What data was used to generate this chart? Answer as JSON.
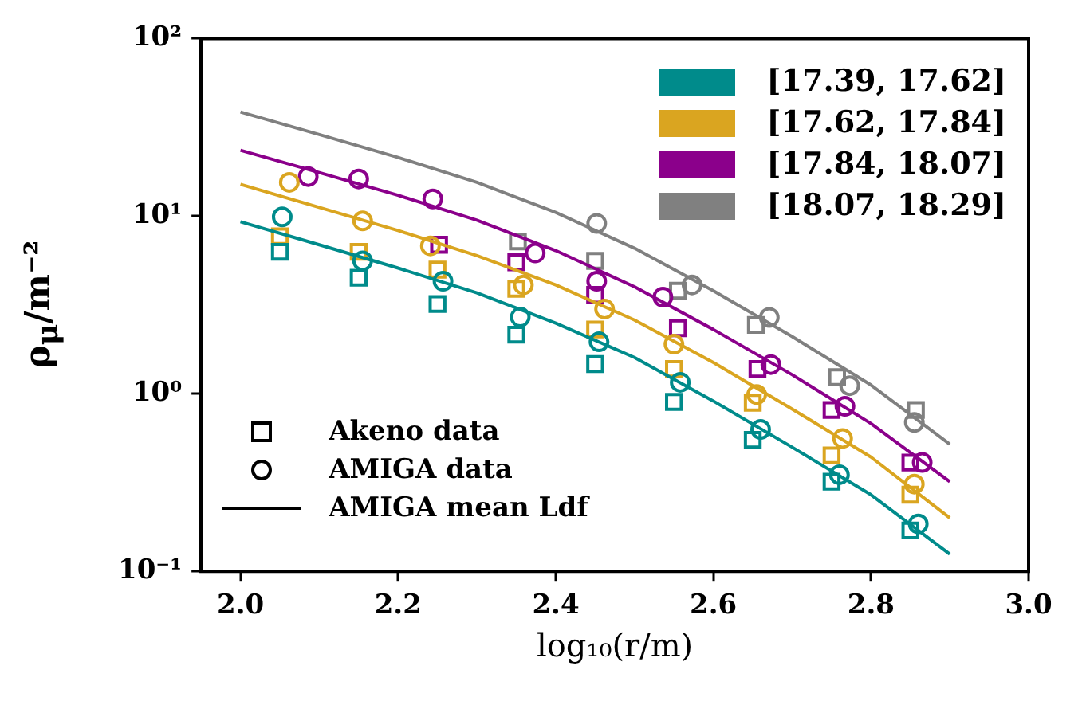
{
  "chart_data": {
    "type": "line",
    "xlabel": "log₁₀(r/m)",
    "ylabel": "ρ$_{μ}$/m⁻²",
    "log": "y",
    "xlim": [
      1.95,
      3.0
    ],
    "xticks": [
      {
        "value": 2.0,
        "label": "2.0"
      },
      {
        "value": 2.2,
        "label": "2.2"
      },
      {
        "value": 2.4,
        "label": "2.4"
      },
      {
        "value": 2.6,
        "label": "2.6"
      },
      {
        "value": 2.8,
        "label": "2.8"
      },
      {
        "value": 3.0,
        "label": "3.0"
      }
    ],
    "ylim": [
      0.1,
      100
    ],
    "yticks": [
      {
        "value": 0.1,
        "label": "10⁻¹"
      },
      {
        "value": 1,
        "label": "10⁰"
      },
      {
        "value": 10,
        "label": "10¹"
      },
      {
        "value": 100,
        "label": "10²"
      }
    ],
    "legend": "top right",
    "annotations": [
      "Akeno data",
      "AMIGA data",
      "AMIGA mean Ldf"
    ],
    "series": [
      {
        "name": "[17.39, 17.62]",
        "marker": "none",
        "color": "#008b8b",
        "x": [
          2.0,
          2.1,
          2.2,
          2.3,
          2.4,
          2.5,
          2.6,
          2.7,
          2.8,
          2.9
        ],
        "values": [
          9.3,
          6.9,
          5.1,
          3.7,
          2.5,
          1.6,
          0.91,
          0.5,
          0.27,
          0.125
        ]
      },
      {
        "name": "[17.62, 17.84]",
        "marker": "none",
        "color": "#daa520",
        "x": [
          2.0,
          2.1,
          2.2,
          2.3,
          2.4,
          2.5,
          2.6,
          2.7,
          2.8,
          2.9
        ],
        "values": [
          15.1,
          11.2,
          8.3,
          6.0,
          4.1,
          2.6,
          1.5,
          0.82,
          0.44,
          0.2
        ]
      },
      {
        "name": "[17.84, 18.07]",
        "marker": "none",
        "color": "#8b008b",
        "x": [
          2.0,
          2.1,
          2.2,
          2.3,
          2.4,
          2.5,
          2.6,
          2.7,
          2.8,
          2.9
        ],
        "values": [
          23.5,
          17.6,
          13.1,
          9.5,
          6.4,
          4.0,
          2.3,
          1.28,
          0.68,
          0.32
        ]
      },
      {
        "name": "[18.07, 18.29]",
        "marker": "none",
        "color": "#808080",
        "x": [
          2.0,
          2.1,
          2.2,
          2.3,
          2.4,
          2.5,
          2.6,
          2.7,
          2.8,
          2.9
        ],
        "values": [
          38.6,
          28.8,
          21.4,
          15.5,
          10.5,
          6.6,
          3.8,
          2.1,
          1.12,
          0.52
        ]
      },
      {
        "type": "scatter",
        "marker": "square",
        "color": "#008b8b",
        "x": [
          2.05,
          2.15,
          2.25,
          2.35,
          2.45,
          2.55,
          2.65,
          2.75,
          2.85
        ],
        "values": [
          6.3,
          4.5,
          3.2,
          2.15,
          1.47,
          0.9,
          0.55,
          0.32,
          0.17
        ]
      },
      {
        "type": "scatter",
        "marker": "circle",
        "color": "#008b8b",
        "x": [
          2.053,
          2.155,
          2.257,
          2.355,
          2.455,
          2.558,
          2.66,
          2.76,
          2.86
        ],
        "values": [
          9.9,
          5.6,
          4.3,
          2.7,
          1.96,
          1.16,
          0.63,
          0.35,
          0.185
        ]
      },
      {
        "type": "scatter",
        "marker": "square",
        "color": "#daa520",
        "x": [
          2.05,
          2.15,
          2.25,
          2.35,
          2.45,
          2.55,
          2.65,
          2.75,
          2.85
        ],
        "values": [
          7.7,
          6.3,
          5.0,
          3.9,
          2.3,
          1.38,
          0.89,
          0.45,
          0.27
        ]
      },
      {
        "type": "scatter",
        "marker": "circle",
        "color": "#daa520",
        "x": [
          2.062,
          2.155,
          2.241,
          2.359,
          2.462,
          2.55,
          2.655,
          2.764,
          2.855
        ],
        "values": [
          15.5,
          9.4,
          6.8,
          4.1,
          3.0,
          1.9,
          0.99,
          0.56,
          0.31
        ]
      },
      {
        "type": "scatter",
        "marker": "square",
        "color": "#8b008b",
        "x": [
          2.252,
          2.35,
          2.45,
          2.555,
          2.656,
          2.75,
          2.85
        ],
        "values": [
          6.9,
          5.5,
          3.6,
          2.34,
          1.38,
          0.81,
          0.41
        ]
      },
      {
        "type": "scatter",
        "marker": "circle",
        "color": "#8b008b",
        "x": [
          2.086,
          2.15,
          2.244,
          2.374,
          2.452,
          2.536,
          2.673,
          2.767,
          2.865
        ],
        "values": [
          16.7,
          16.2,
          12.5,
          6.2,
          4.3,
          3.5,
          1.46,
          0.85,
          0.41
        ]
      },
      {
        "type": "scatter",
        "marker": "square",
        "color": "#808080",
        "x": [
          2.352,
          2.45,
          2.555,
          2.654,
          2.757,
          2.857
        ],
        "values": [
          7.2,
          5.6,
          3.8,
          2.44,
          1.24,
          0.81
        ]
      },
      {
        "type": "scatter",
        "marker": "circle",
        "color": "#808080",
        "x": [
          2.452,
          2.573,
          2.671,
          2.773,
          2.855
        ],
        "values": [
          9.1,
          4.1,
          2.69,
          1.11,
          0.69
        ]
      }
    ]
  }
}
